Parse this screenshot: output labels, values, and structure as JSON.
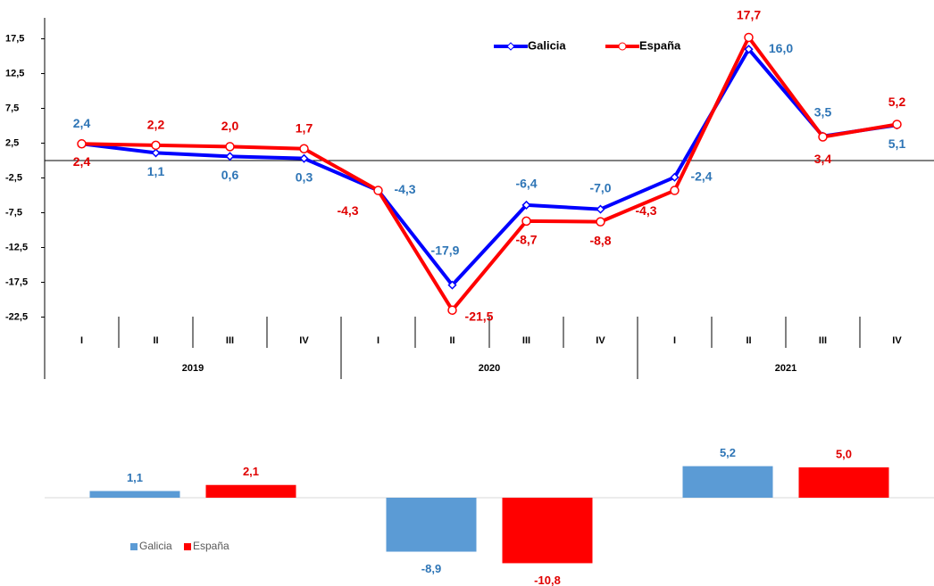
{
  "chart_data": [
    {
      "type": "line",
      "categories": [
        "I",
        "II",
        "III",
        "IV",
        "I",
        "II",
        "III",
        "IV",
        "I",
        "II",
        "III",
        "IV"
      ],
      "year_labels": [
        "2019",
        "2020",
        "2021"
      ],
      "series": [
        {
          "name": "Galicia",
          "color": "#0000ff",
          "label_color": "#2e75b6",
          "values": [
            2.4,
            1.1,
            0.6,
            0.3,
            -4.3,
            -17.9,
            -6.4,
            -7.0,
            -2.4,
            16.0,
            3.5,
            5.1
          ],
          "value_labels": [
            "2,4",
            "1,1",
            "0,6",
            "0,3",
            "-4,3",
            "-17,9",
            "-6,4",
            "-7,0",
            "-2,4",
            "16,0",
            "3,5",
            "5,1"
          ]
        },
        {
          "name": "España",
          "color": "#ff0000",
          "label_color": "#e00000",
          "values": [
            2.4,
            2.2,
            2.0,
            1.7,
            -4.3,
            -21.5,
            -8.7,
            -8.8,
            -4.3,
            17.7,
            3.4,
            5.2
          ],
          "value_labels": [
            "2,4",
            "2,2",
            "2,0",
            "1,7",
            "-4,3",
            "-21,5",
            "-8,7",
            "-8,8",
            "-4,3",
            "17,7",
            "3,4",
            "5,2"
          ]
        }
      ],
      "ylim": [
        -22.5,
        22.5
      ],
      "yticks": [
        {
          "value": 17.5,
          "label": "17,5"
        },
        {
          "value": 12.5,
          "label": "12,5"
        },
        {
          "value": 7.5,
          "label": "7,5"
        },
        {
          "value": 2.5,
          "label": "2,5"
        },
        {
          "value": -2.5,
          "label": "-2,5"
        },
        {
          "value": -7.5,
          "label": "-7,5"
        },
        {
          "value": -12.5,
          "label": "-12,5"
        },
        {
          "value": -17.5,
          "label": "-17,5"
        },
        {
          "value": -22.5,
          "label": "-22,5"
        }
      ],
      "legend": "top"
    },
    {
      "type": "bar",
      "categories": [
        null,
        null,
        null
      ],
      "series": [
        {
          "name": "Galicia",
          "color": "#5b9bd5",
          "label_color": "#2e75b6",
          "values": [
            1.1,
            -8.9,
            5.2
          ],
          "value_labels": [
            "1,1",
            "-8,9",
            "5,2"
          ]
        },
        {
          "name": "España",
          "color": "#ff0000",
          "label_color": "#e00000",
          "values": [
            2.1,
            -10.8,
            5.0
          ],
          "value_labels": [
            "2,1",
            "-10,8",
            "5,0"
          ]
        }
      ],
      "legend": "bottom-left"
    }
  ]
}
